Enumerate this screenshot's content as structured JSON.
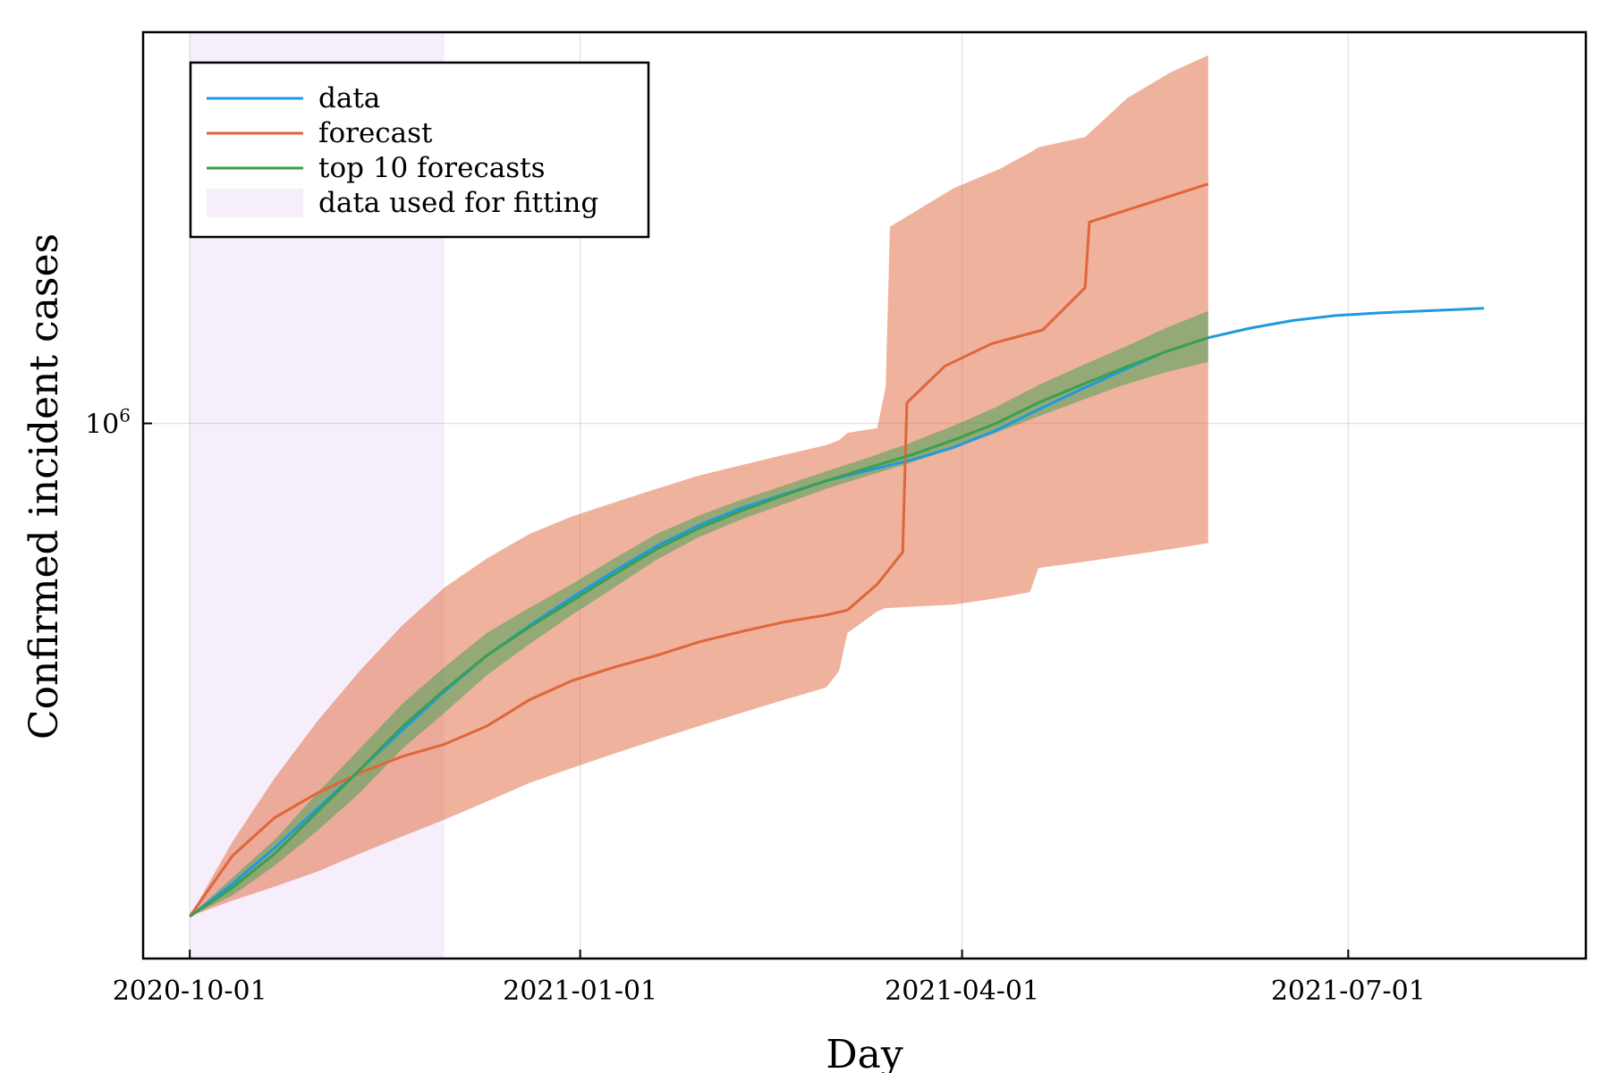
{
  "chart_data": {
    "type": "line",
    "title": "",
    "xlabel": "Day",
    "ylabel": "Confirmed incident cases",
    "x_scale": "date",
    "y_scale": "log",
    "xlim": [
      "2020-09-20",
      "2021-08-26"
    ],
    "ylim": [
      320000,
      2300000
    ],
    "x_ticks": [
      "2020-10-01",
      "2021-01-01",
      "2021-04-01",
      "2021-07-01"
    ],
    "y_ticks": [
      {
        "value": 1000000,
        "base": "10",
        "exponent": "6"
      }
    ],
    "grid": true,
    "legend_position": "top-left",
    "fitting_window": {
      "label": "data used for fitting",
      "start": "2020-10-01",
      "end": "2020-11-30",
      "color": "#f6eefb"
    },
    "series": [
      {
        "name": "data",
        "color": "#1f9ae0",
        "x": [
          "2020-10-01",
          "2020-10-11",
          "2020-10-21",
          "2020-10-31",
          "2020-11-10",
          "2020-11-20",
          "2020-11-30",
          "2020-12-10",
          "2020-12-20",
          "2020-12-30",
          "2021-01-09",
          "2021-01-19",
          "2021-01-29",
          "2021-02-08",
          "2021-02-18",
          "2021-02-28",
          "2021-03-10",
          "2021-03-20",
          "2021-03-30",
          "2021-04-09",
          "2021-04-19",
          "2021-04-29",
          "2021-05-09",
          "2021-05-19",
          "2021-05-29",
          "2021-06-08",
          "2021-06-18",
          "2021-06-28",
          "2021-07-08",
          "2021-07-18",
          "2021-07-28",
          "2021-08-02"
        ],
        "y": [
          350000,
          375000,
          405000,
          440000,
          478000,
          520000,
          565000,
          610000,
          650000,
          690000,
          730000,
          770000,
          805000,
          835000,
          860000,
          885000,
          905000,
          925000,
          950000,
          985000,
          1030000,
          1075000,
          1120000,
          1165000,
          1200000,
          1225000,
          1245000,
          1258000,
          1265000,
          1270000,
          1275000,
          1278000
        ]
      },
      {
        "name": "forecast",
        "color": "#e0653a",
        "x": [
          "2020-10-01",
          "2020-10-11",
          "2020-10-21",
          "2020-10-31",
          "2020-11-10",
          "2020-11-20",
          "2020-11-30",
          "2020-12-10",
          "2020-12-20",
          "2020-12-30",
          "2021-01-09",
          "2021-01-19",
          "2021-01-29",
          "2021-02-08",
          "2021-02-18",
          "2021-02-28",
          "2021-03-05",
          "2021-03-12",
          "2021-03-18",
          "2021-03-19",
          "2021-03-28",
          "2021-04-08",
          "2021-04-20",
          "2021-04-30",
          "2021-05-01",
          "2021-05-29"
        ],
        "y": [
          350000,
          398000,
          432000,
          455000,
          475000,
          492000,
          505000,
          525000,
          555000,
          578000,
          595000,
          610000,
          628000,
          642000,
          655000,
          665000,
          672000,
          710000,
          760000,
          1045000,
          1130000,
          1185000,
          1220000,
          1335000,
          1535000,
          1665000
        ]
      },
      {
        "name": "top 10 forecasts",
        "color": "#3aa04f",
        "x": [
          "2020-10-01",
          "2020-10-11",
          "2020-10-21",
          "2020-10-31",
          "2020-11-10",
          "2020-11-20",
          "2020-11-30",
          "2020-12-10",
          "2020-12-20",
          "2020-12-30",
          "2021-01-09",
          "2021-01-19",
          "2021-01-29",
          "2021-02-08",
          "2021-02-18",
          "2021-02-28",
          "2021-03-10",
          "2021-03-20",
          "2021-03-30",
          "2021-04-09",
          "2021-04-19",
          "2021-04-29",
          "2021-05-09",
          "2021-05-19",
          "2021-05-29"
        ],
        "y": [
          350000,
          372000,
          400000,
          437000,
          478000,
          524000,
          567000,
          610000,
          648000,
          685000,
          725000,
          765000,
          800000,
          830000,
          858000,
          885000,
          910000,
          935000,
          965000,
          1000000,
          1045000,
          1085000,
          1125000,
          1165000,
          1200000
        ]
      }
    ],
    "bands": [
      {
        "name": "forecast",
        "color": "#e0653a",
        "opacity": 0.5,
        "x": [
          "2020-10-01",
          "2020-10-11",
          "2020-10-21",
          "2020-10-31",
          "2020-11-10",
          "2020-11-20",
          "2020-11-30",
          "2020-12-10",
          "2020-12-20",
          "2020-12-30",
          "2021-01-09",
          "2021-01-19",
          "2021-01-29",
          "2021-02-08",
          "2021-02-18",
          "2021-02-28",
          "2021-03-03",
          "2021-03-05",
          "2021-03-12",
          "2021-03-14",
          "2021-03-15",
          "2021-03-30",
          "2021-04-10",
          "2021-04-17",
          "2021-04-19",
          "2021-04-30",
          "2021-05-10",
          "2021-05-20",
          "2021-05-29"
        ],
        "lower": [
          350000,
          362000,
          373000,
          385000,
          400000,
          415000,
          430000,
          447000,
          465000,
          480000,
          495000,
          510000,
          525000,
          540000,
          555000,
          570000,
          590000,
          640000,
          670000,
          675000,
          675000,
          680000,
          690000,
          698000,
          735000,
          745000,
          755000,
          765000,
          775000
        ],
        "upper": [
          350000,
          410000,
          470000,
          530000,
          590000,
          650000,
          705000,
          750000,
          790000,
          820000,
          845000,
          870000,
          895000,
          915000,
          935000,
          955000,
          965000,
          980000,
          990000,
          1080000,
          1520000,
          1650000,
          1720000,
          1780000,
          1800000,
          1840000,
          2000000,
          2110000,
          2190000
        ]
      },
      {
        "name": "top 10 forecasts",
        "color": "#3aa04f",
        "opacity": 0.5,
        "x": [
          "2020-10-01",
          "2020-10-11",
          "2020-10-21",
          "2020-10-31",
          "2020-11-10",
          "2020-11-20",
          "2020-11-30",
          "2020-12-10",
          "2020-12-20",
          "2020-12-30",
          "2021-01-09",
          "2021-01-19",
          "2021-01-29",
          "2021-02-08",
          "2021-02-18",
          "2021-02-28",
          "2021-03-10",
          "2021-03-20",
          "2021-03-30",
          "2021-04-09",
          "2021-04-19",
          "2021-04-29",
          "2021-05-09",
          "2021-05-19",
          "2021-05-29"
        ],
        "lower": [
          350000,
          366000,
          390000,
          420000,
          455000,
          500000,
          540000,
          585000,
          625000,
          665000,
          705000,
          748000,
          785000,
          815000,
          842000,
          870000,
          895000,
          920000,
          948000,
          980000,
          1015000,
          1050000,
          1085000,
          1115000,
          1140000
        ],
        "upper": [
          350000,
          380000,
          412000,
          455000,
          500000,
          550000,
          595000,
          640000,
          675000,
          710000,
          750000,
          790000,
          822000,
          850000,
          876000,
          903000,
          930000,
          960000,
          995000,
          1035000,
          1085000,
          1130000,
          1175000,
          1225000,
          1270000
        ]
      }
    ]
  },
  "legend": {
    "items": [
      {
        "label": "data",
        "color": "#1f9ae0",
        "kind": "line"
      },
      {
        "label": "forecast",
        "color": "#e0653a",
        "kind": "line"
      },
      {
        "label": "top 10 forecasts",
        "color": "#3aa04f",
        "kind": "line"
      },
      {
        "label": "data used for fitting",
        "color": "#f6eefb",
        "kind": "area"
      }
    ]
  }
}
